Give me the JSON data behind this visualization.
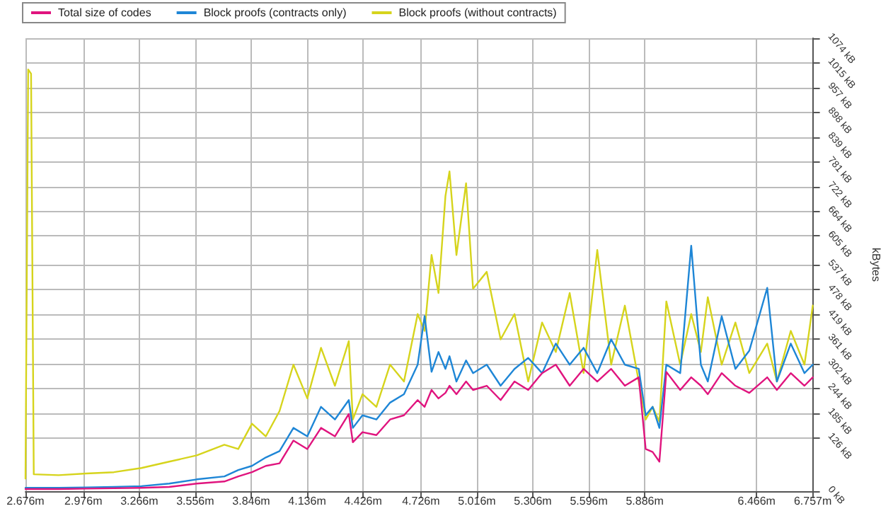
{
  "chart_data": {
    "type": "line",
    "ylabel": "kBytes",
    "legend": "top",
    "grid": true,
    "marker": "none",
    "line_style": "solid",
    "x": [
      2.676,
      2.69,
      2.705,
      2.719,
      2.848,
      2.991,
      3.134,
      3.277,
      3.421,
      3.564,
      3.707,
      3.779,
      3.85,
      3.922,
      3.993,
      4.065,
      4.137,
      4.208,
      4.28,
      4.352,
      4.373,
      4.423,
      4.495,
      4.566,
      4.638,
      4.709,
      4.745,
      4.781,
      4.817,
      4.853,
      4.874,
      4.91,
      4.96,
      4.996,
      5.067,
      5.139,
      5.211,
      5.282,
      5.354,
      5.425,
      5.497,
      5.569,
      5.64,
      5.712,
      5.783,
      5.855,
      5.891,
      5.927,
      5.962,
      5.998,
      6.07,
      6.127,
      6.177,
      6.213,
      6.285,
      6.356,
      6.428,
      6.521,
      6.571,
      6.643,
      6.714,
      6.757
    ],
    "xlim": [
      2.676,
      6.757
    ],
    "xticks": [
      {
        "value": 2.676,
        "label": "2.676m"
      },
      {
        "value": 2.976,
        "label": "2.976m"
      },
      {
        "value": 3.266,
        "label": "3.266m"
      },
      {
        "value": 3.556,
        "label": "3.556m"
      },
      {
        "value": 3.846,
        "label": "3.846m"
      },
      {
        "value": 4.136,
        "label": "4.136m"
      },
      {
        "value": 4.426,
        "label": "4.426m"
      },
      {
        "value": 4.726,
        "label": "4.726m"
      },
      {
        "value": 5.016,
        "label": "5.016m"
      },
      {
        "value": 5.306,
        "label": "5.306m"
      },
      {
        "value": 5.596,
        "label": "5.596m"
      },
      {
        "value": 5.886,
        "label": "5.886m"
      },
      {
        "value": 6.466,
        "label": "6.466m"
      },
      {
        "value": 6.757,
        "label": "6.757m"
      }
    ],
    "ylim": [
      0,
      1074
    ],
    "yticks": [
      {
        "value": 0,
        "label": "0 kB"
      },
      {
        "value": 126,
        "label": "126 kB"
      },
      {
        "value": 185,
        "label": "185 kB"
      },
      {
        "value": 244,
        "label": "244 kB"
      },
      {
        "value": 302,
        "label": "302 kB"
      },
      {
        "value": 361,
        "label": "361 kB"
      },
      {
        "value": 419,
        "label": "419 kB"
      },
      {
        "value": 478,
        "label": "478 kB"
      },
      {
        "value": 537,
        "label": "537 kB"
      },
      {
        "value": 605,
        "label": "605 kB"
      },
      {
        "value": 664,
        "label": "664 kB"
      },
      {
        "value": 722,
        "label": "722 kB"
      },
      {
        "value": 781,
        "label": "781 kB"
      },
      {
        "value": 839,
        "label": "839 kB"
      },
      {
        "value": 898,
        "label": "898 kB"
      },
      {
        "value": 957,
        "label": "957 kB"
      },
      {
        "value": 1015,
        "label": "1015 kB"
      },
      {
        "value": 1074,
        "label": "1074 kB"
      }
    ],
    "series": [
      {
        "name": "Total size of codes",
        "color": "#e0147e",
        "values": [
          5,
          5,
          5,
          5,
          5,
          6,
          7,
          8,
          10,
          18,
          23,
          35,
          45,
          60,
          66,
          120,
          100,
          150,
          130,
          183,
          116,
          140,
          133,
          170,
          180,
          216,
          200,
          240,
          220,
          233,
          250,
          230,
          260,
          240,
          250,
          216,
          260,
          240,
          280,
          300,
          250,
          290,
          260,
          290,
          250,
          270,
          100,
          93,
          70,
          283,
          240,
          270,
          250,
          230,
          280,
          250,
          233,
          270,
          240,
          280,
          250,
          270
        ]
      },
      {
        "name": "Block proofs (contracts only)",
        "color": "#1e86d6",
        "values": [
          8,
          8,
          8,
          8,
          8,
          9,
          10,
          12,
          18,
          28,
          35,
          50,
          60,
          80,
          95,
          150,
          130,
          200,
          170,
          216,
          150,
          180,
          170,
          210,
          230,
          300,
          415,
          283,
          330,
          290,
          320,
          260,
          310,
          280,
          300,
          250,
          290,
          316,
          280,
          350,
          300,
          340,
          280,
          360,
          300,
          290,
          180,
          200,
          150,
          300,
          280,
          582,
          300,
          260,
          415,
          290,
          333,
          482,
          260,
          350,
          280,
          300
        ]
      },
      {
        "name": "Block proofs (without contracts)",
        "color": "#d6d41c",
        "values": [
          30,
          1000,
          990,
          40,
          38,
          42,
          45,
          55,
          70,
          85,
          110,
          100,
          160,
          130,
          190,
          300,
          220,
          340,
          250,
          356,
          170,
          230,
          200,
          300,
          260,
          420,
          380,
          560,
          470,
          700,
          758,
          560,
          730,
          480,
          520,
          360,
          420,
          260,
          400,
          330,
          470,
          280,
          572,
          300,
          440,
          260,
          170,
          200,
          165,
          450,
          300,
          420,
          330,
          460,
          300,
          400,
          280,
          350,
          260,
          380,
          300,
          440
        ]
      }
    ]
  }
}
